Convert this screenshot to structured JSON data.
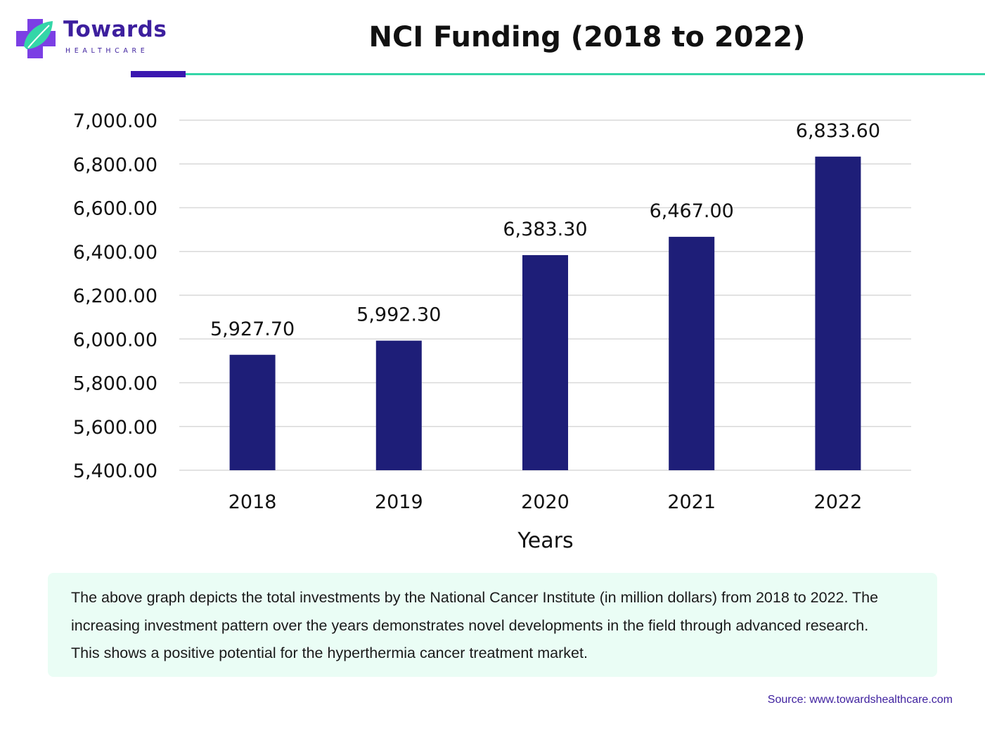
{
  "brand": {
    "name": "Towards",
    "tagline": "HEALTHCARE",
    "colors": {
      "purple": "#3d1f9e",
      "teal": "#34d6a8",
      "bar": "#1e1e78"
    }
  },
  "header": {
    "title": "NCI Funding (2018 to 2022)"
  },
  "chart_data": {
    "type": "bar",
    "title": "NCI Funding (2018 to 2022)",
    "categories": [
      "2018",
      "2019",
      "2020",
      "2021",
      "2022"
    ],
    "values": [
      5927.7,
      5992.3,
      6383.3,
      6467.0,
      6833.6
    ],
    "data_labels": [
      "5,927.70",
      "5,992.30",
      "6,383.30",
      "6,467.00",
      "6,833.60"
    ],
    "xlabel": "Years",
    "ylabel": "",
    "ylim": [
      5400,
      7000
    ],
    "y_ticks": [
      5400,
      5600,
      5800,
      6000,
      6200,
      6400,
      6600,
      6800,
      7000
    ],
    "y_tick_labels": [
      "5,400.00",
      "5,600.00",
      "5,800.00",
      "6,000.00",
      "6,200.00",
      "6,400.00",
      "6,600.00",
      "6,800.00",
      "7,000.00"
    ],
    "grid": true,
    "bar_color": "#1e1e78"
  },
  "note": {
    "text": "The above graph depicts the total investments by the National Cancer Institute (in million dollars) from 2018 to 2022. The increasing investment pattern over the years demonstrates novel developments in the field through advanced research. This shows a positive potential for the hyperthermia cancer treatment market."
  },
  "footer": {
    "source": "Source: www.towardshealthcare.com"
  }
}
